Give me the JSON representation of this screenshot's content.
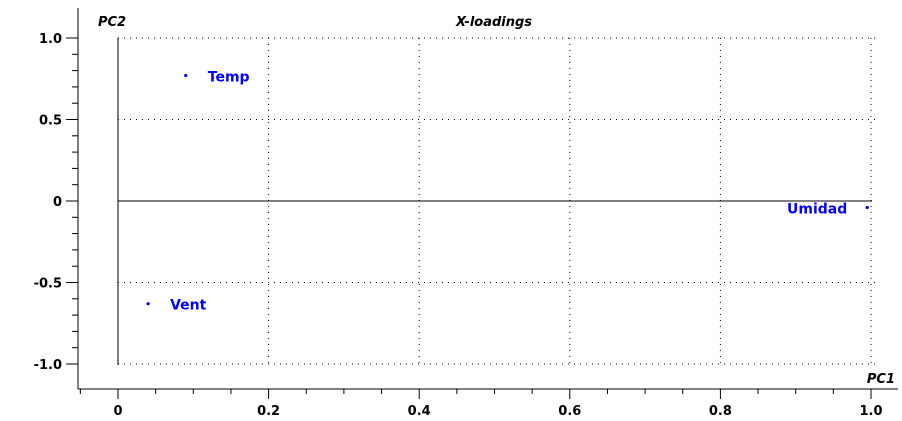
{
  "chart_data": {
    "type": "scatter",
    "title": "X-loadings",
    "xlabel": "PC1",
    "ylabel": "PC2",
    "xlim": [
      -0.05,
      1.0
    ],
    "ylim": [
      -1.0,
      1.0
    ],
    "x_ticks": [
      0,
      0.2,
      0.4,
      0.6,
      0.8,
      1.0
    ],
    "x_tick_labels": [
      "0",
      "0.2",
      "0.4",
      "0.6",
      "0.8",
      "1.0"
    ],
    "y_ticks": [
      1.0,
      0.5,
      0,
      -0.5,
      -1.0
    ],
    "y_tick_labels": [
      "1.0",
      "0.5",
      "0",
      "-0.5",
      "-1.0"
    ],
    "grid": true,
    "point_color": "#0000ff",
    "axis_color": "#000000",
    "points": [
      {
        "label": "Temp",
        "x": 0.09,
        "y": 0.77
      },
      {
        "label": "Vent",
        "x": 0.04,
        "y": -0.63
      },
      {
        "label": "Umidad",
        "x": 0.995,
        "y": -0.04
      }
    ]
  }
}
